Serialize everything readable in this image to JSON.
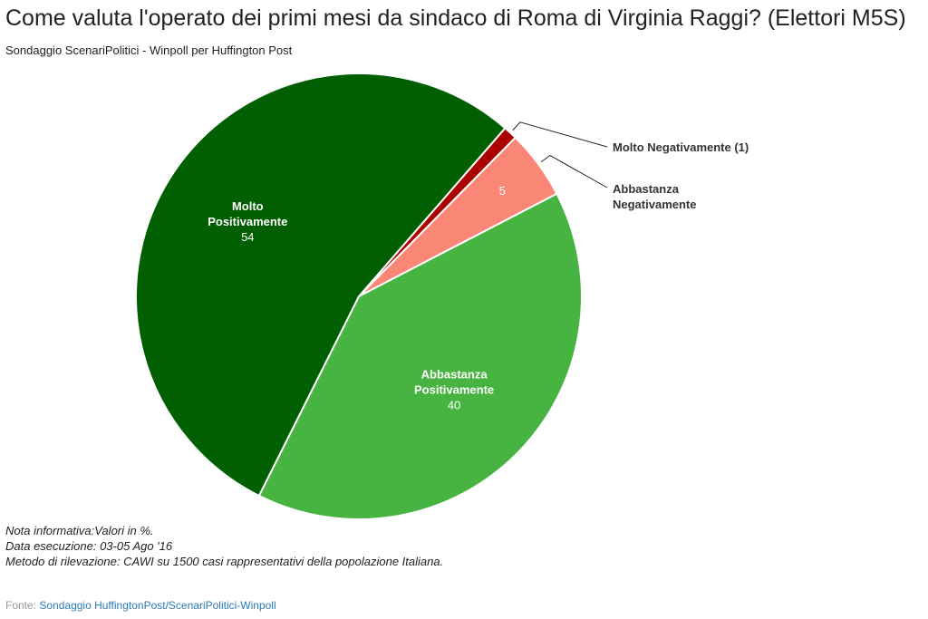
{
  "header": {
    "title": "Come valuta l'operato dei primi mesi da sindaco di Roma di Virginia Raggi? (Elettori M5S)",
    "subtitle": "Sondaggio ScenariPolitici - Winpoll per Huffington Post"
  },
  "chart_data": {
    "type": "pie",
    "title": "Come valuta l'operato dei primi mesi da sindaco di Roma di Virginia Raggi? (Elettori M5S)",
    "subtitle": "Sondaggio ScenariPolitici - Winpoll per Huffington Post",
    "start_angle_deg": 41,
    "slices": [
      {
        "key": "molto-negativamente",
        "label_lines": [
          "Molto Negativamente (1)"
        ],
        "value": 1,
        "value_label": "",
        "color": "#aa0000",
        "label_placement": "outside"
      },
      {
        "key": "abbastanza-negativamente",
        "label_lines": [
          "Abbastanza",
          "Negativamente"
        ],
        "value": 5,
        "value_label": "5",
        "color": "#fa8776",
        "label_placement": "outside"
      },
      {
        "key": "abbastanza-positivamente",
        "label_lines": [
          "Abbastanza",
          "Positivamente"
        ],
        "value": 40,
        "value_label": "40",
        "color": "#47b442",
        "label_placement": "inside"
      },
      {
        "key": "molto-positivamente",
        "label_lines": [
          "Molto",
          "Positivamente"
        ],
        "value": 54,
        "value_label": "54",
        "color": "#005f00",
        "label_placement": "inside"
      }
    ]
  },
  "notes": {
    "line1": "Nota informativa:Valori in %.",
    "line2": "Data esecuzione: 03-05 Ago '16",
    "line3": "Metodo di rilevazione: CAWI su 1500 casi rappresentativi della popolazione Italiana."
  },
  "source": {
    "label": "Fonte:",
    "link_text": "Sondaggio HuffingtonPost/ScenariPolitici-Winpoll"
  }
}
